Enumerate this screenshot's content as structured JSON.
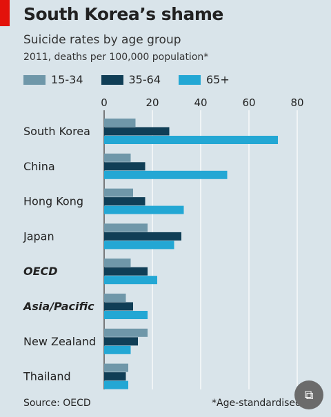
{
  "header": {
    "title": "South Korea’s shame",
    "subtitle": "Suicide rates by age group",
    "note": "2011, deaths per 100,000 population*"
  },
  "footer": {
    "source": "Source: OECD",
    "footnote": "*Age-standardised"
  },
  "badge": {
    "icon": "scan-text-icon"
  },
  "chart_data": {
    "type": "bar",
    "orientation": "horizontal",
    "title": "South Korea’s shame",
    "subtitle": "Suicide rates by age group",
    "xlabel": "",
    "ylabel": "",
    "xlim": [
      0,
      80
    ],
    "ticks": [
      0,
      20,
      40,
      60,
      80
    ],
    "grid": true,
    "legend_position": "top",
    "categories": [
      "South Korea",
      "China",
      "Hong Kong",
      "Japan",
      "OECD",
      "Asia/Pacific",
      "New Zealand",
      "Thailand"
    ],
    "emphasized_categories": [
      "OECD",
      "Asia/Pacific"
    ],
    "series": [
      {
        "name": "15-34",
        "color": "#6f97a9",
        "values": [
          13,
          11,
          12,
          18,
          11,
          9,
          18,
          10
        ]
      },
      {
        "name": "35-64",
        "color": "#103e56",
        "values": [
          27,
          17,
          17,
          32,
          18,
          12,
          14,
          9
        ]
      },
      {
        "name": "65+",
        "color": "#23a7d4",
        "values": [
          72,
          51,
          33,
          29,
          22,
          18,
          11,
          10
        ]
      }
    ]
  }
}
